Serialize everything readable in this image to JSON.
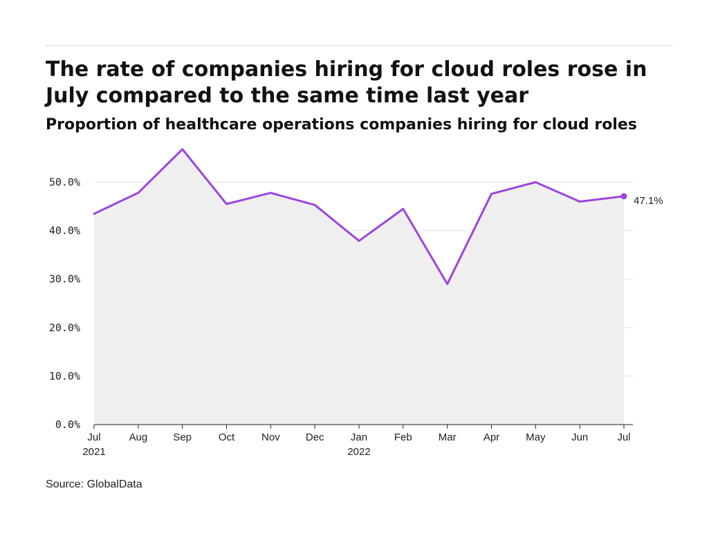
{
  "title": "The rate of companies hiring for cloud roles rose in July compared to the same time last year",
  "subtitle": "Proportion of healthcare operations companies hiring for cloud roles",
  "source": "Source: GlobalData",
  "chart_data": {
    "type": "area",
    "categories": [
      "Jul",
      "Aug",
      "Sep",
      "Oct",
      "Nov",
      "Dec",
      "Jan",
      "Feb",
      "Mar",
      "Apr",
      "May",
      "Jun",
      "Jul"
    ],
    "category_sublabels": [
      "2021",
      "",
      "",
      "",
      "",
      "",
      "2022",
      "",
      "",
      "",
      "",
      "",
      ""
    ],
    "values": [
      43.5,
      47.8,
      56.8,
      45.5,
      47.8,
      45.3,
      37.9,
      44.5,
      29.0,
      47.6,
      50.0,
      46.0,
      47.1
    ],
    "yticks": [
      0,
      10,
      20,
      30,
      40,
      50
    ],
    "ytick_labels": [
      "0.0%",
      "10.0%",
      "20.0%",
      "30.0%",
      "40.0%",
      "50.0%"
    ],
    "ylim": [
      0,
      60
    ],
    "end_label": "47.1%",
    "grid": true,
    "colors": {
      "line": "#9b45e0",
      "fill": "#efeff0",
      "grid": "#e3e3e3",
      "axis": "#222222"
    },
    "title": "",
    "xlabel": "",
    "ylabel": ""
  }
}
